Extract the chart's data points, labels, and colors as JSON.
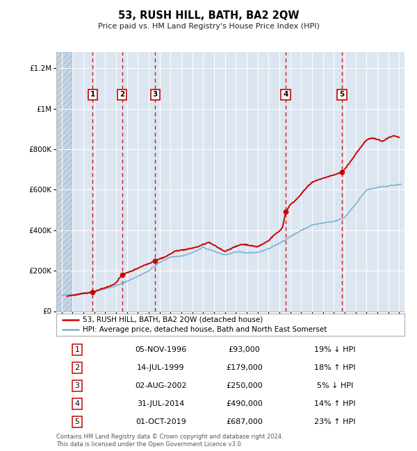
{
  "title": "53, RUSH HILL, BATH, BA2 2QW",
  "subtitle": "Price paid vs. HM Land Registry's House Price Index (HPI)",
  "footer_line1": "Contains HM Land Registry data © Crown copyright and database right 2024.",
  "footer_line2": "This data is licensed under the Open Government Licence v3.0.",
  "legend_label_red": "53, RUSH HILL, BATH, BA2 2QW (detached house)",
  "legend_label_blue": "HPI: Average price, detached house, Bath and North East Somerset",
  "transactions": [
    {
      "num": 1,
      "date": "05-NOV-1996",
      "year": 1996.85,
      "price": 93000,
      "pct": "19%",
      "dir": "↓"
    },
    {
      "num": 2,
      "date": "14-JUL-1999",
      "year": 1999.54,
      "price": 179000,
      "pct": "18%",
      "dir": "↑"
    },
    {
      "num": 3,
      "date": "02-AUG-2002",
      "year": 2002.59,
      "price": 250000,
      "pct": "5%",
      "dir": "↓"
    },
    {
      "num": 4,
      "date": "31-JUL-2014",
      "year": 2014.58,
      "price": 490000,
      "pct": "14%",
      "dir": "↑"
    },
    {
      "num": 5,
      "date": "01-OCT-2019",
      "year": 2019.75,
      "price": 687000,
      "pct": "23%",
      "dir": "↑"
    }
  ],
  "xmin": 1993.5,
  "xmax": 2025.5,
  "ymin": 0,
  "ymax": 1280000,
  "hatch_xend": 1994.9,
  "red_color": "#cc0000",
  "blue_color": "#7aadcf",
  "background_color": "#dce6f1",
  "hatch_color": "#c8d8e8",
  "grid_color": "#ffffff",
  "vline_color": "#cc0000",
  "table_rows": [
    [
      1,
      "05-NOV-1996",
      "£93,000",
      "19% ↓ HPI"
    ],
    [
      2,
      "14-JUL-1999",
      "£179,000",
      "18% ↑ HPI"
    ],
    [
      3,
      "02-AUG-2002",
      "£250,000",
      "5% ↓ HPI"
    ],
    [
      4,
      "31-JUL-2014",
      "£490,000",
      "14% ↑ HPI"
    ],
    [
      5,
      "01-OCT-2019",
      "£687,000",
      "23% ↑ HPI"
    ]
  ],
  "hpi_anchors": [
    [
      1994.0,
      78000
    ],
    [
      1995.0,
      82000
    ],
    [
      1996.0,
      87000
    ],
    [
      1997.0,
      97000
    ],
    [
      1998.0,
      110000
    ],
    [
      1999.0,
      125000
    ],
    [
      2000.0,
      148000
    ],
    [
      2001.0,
      172000
    ],
    [
      2002.0,
      200000
    ],
    [
      2003.0,
      240000
    ],
    [
      2004.0,
      268000
    ],
    [
      2005.0,
      272000
    ],
    [
      2006.0,
      288000
    ],
    [
      2007.0,
      315000
    ],
    [
      2008.0,
      295000
    ],
    [
      2009.0,
      278000
    ],
    [
      2010.0,
      292000
    ],
    [
      2011.0,
      288000
    ],
    [
      2012.0,
      290000
    ],
    [
      2013.0,
      308000
    ],
    [
      2014.0,
      335000
    ],
    [
      2015.0,
      368000
    ],
    [
      2016.0,
      398000
    ],
    [
      2017.0,
      425000
    ],
    [
      2018.0,
      435000
    ],
    [
      2019.0,
      442000
    ],
    [
      2020.0,
      462000
    ],
    [
      2021.0,
      528000
    ],
    [
      2022.0,
      598000
    ],
    [
      2023.0,
      610000
    ],
    [
      2024.0,
      618000
    ],
    [
      2025.0,
      625000
    ]
  ],
  "red_anchors": [
    [
      1994.5,
      75000
    ],
    [
      1995.5,
      82000
    ],
    [
      1996.0,
      88000
    ],
    [
      1996.85,
      93000
    ],
    [
      1997.5,
      108000
    ],
    [
      1998.5,
      125000
    ],
    [
      1999.0,
      140000
    ],
    [
      1999.54,
      179000
    ],
    [
      2000.5,
      200000
    ],
    [
      2001.5,
      225000
    ],
    [
      2002.0,
      235000
    ],
    [
      2002.59,
      250000
    ],
    [
      2003.5,
      268000
    ],
    [
      2004.5,
      298000
    ],
    [
      2005.5,
      305000
    ],
    [
      2006.5,
      318000
    ],
    [
      2007.5,
      340000
    ],
    [
      2008.0,
      325000
    ],
    [
      2008.5,
      310000
    ],
    [
      2009.0,
      295000
    ],
    [
      2009.5,
      308000
    ],
    [
      2010.5,
      330000
    ],
    [
      2011.0,
      328000
    ],
    [
      2011.5,
      322000
    ],
    [
      2012.0,
      318000
    ],
    [
      2012.5,
      332000
    ],
    [
      2013.0,
      348000
    ],
    [
      2013.5,
      375000
    ],
    [
      2014.0,
      395000
    ],
    [
      2014.3,
      415000
    ],
    [
      2014.58,
      490000
    ],
    [
      2015.0,
      525000
    ],
    [
      2015.5,
      548000
    ],
    [
      2016.0,
      578000
    ],
    [
      2016.5,
      610000
    ],
    [
      2017.0,
      635000
    ],
    [
      2017.5,
      648000
    ],
    [
      2018.0,
      655000
    ],
    [
      2018.5,
      665000
    ],
    [
      2019.0,
      672000
    ],
    [
      2019.75,
      687000
    ],
    [
      2020.0,
      700000
    ],
    [
      2020.5,
      735000
    ],
    [
      2021.0,
      775000
    ],
    [
      2021.5,
      810000
    ],
    [
      2022.0,
      845000
    ],
    [
      2022.5,
      855000
    ],
    [
      2023.0,
      848000
    ],
    [
      2023.5,
      838000
    ],
    [
      2024.0,
      855000
    ],
    [
      2024.5,
      865000
    ],
    [
      2025.0,
      858000
    ]
  ]
}
